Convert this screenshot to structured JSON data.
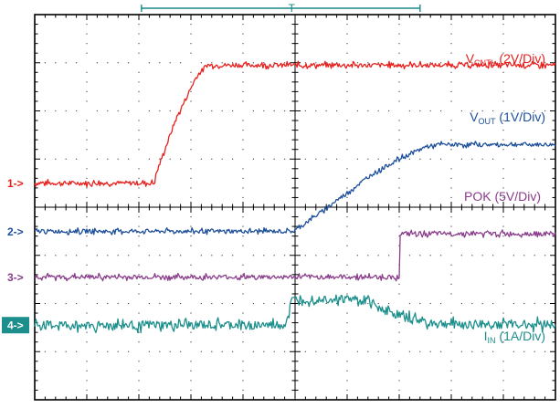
{
  "chart_data": {
    "type": "line",
    "title": "",
    "xlabel": "",
    "ylabel": "",
    "grid": true,
    "divisions": {
      "x": 10,
      "y": 8
    },
    "x_unit": "div",
    "y_unit": "div",
    "trigger_bar": {
      "label": "T"
    },
    "series": [
      {
        "name": "VCNTL",
        "label": {
          "main": "V",
          "sub": "CNTL",
          "scale": "(2V/Div)"
        },
        "marker": "1->",
        "color": "#e8201d",
        "x": [
          0,
          2.3,
          2.35,
          2.7,
          3.1,
          3.3,
          10
        ],
        "y": [
          4.5,
          4.5,
          4.75,
          5.8,
          6.7,
          6.95,
          6.95
        ]
      },
      {
        "name": "VOUT",
        "label": {
          "main": "V",
          "sub": "OUT",
          "scale": "(1V/Div)"
        },
        "marker": "2->",
        "color": "#1d4f9a",
        "x": [
          0,
          9.7,
          9.95,
          11,
          12,
          13,
          14,
          15,
          15.5,
          20
        ],
        "y": [
          3.5,
          3.5,
          3.5,
          3.9,
          4.3,
          4.7,
          5.0,
          5.25,
          5.3,
          5.3
        ]
      },
      {
        "name": "POK",
        "label": {
          "main": "POK (5V/Div)",
          "sub": "",
          "scale": ""
        },
        "marker": "3->",
        "color": "#8a3d8b",
        "x": [
          0,
          14.0,
          14.02,
          20
        ],
        "y": [
          2.55,
          2.55,
          3.45,
          3.45
        ]
      },
      {
        "name": "IIN",
        "label": {
          "main": "I",
          "sub": "IN",
          "scale": "(1A/Div)"
        },
        "marker": "4->",
        "color": "#1c8f8c",
        "x": [
          0,
          9.6,
          9.75,
          9.85,
          10.2,
          12.0,
          12.7,
          13.5,
          14.3,
          15.0,
          15.8,
          20
        ],
        "y": [
          1.55,
          1.55,
          1.75,
          2.05,
          2.1,
          2.1,
          2.05,
          1.85,
          1.7,
          1.62,
          1.57,
          1.57
        ]
      }
    ]
  }
}
